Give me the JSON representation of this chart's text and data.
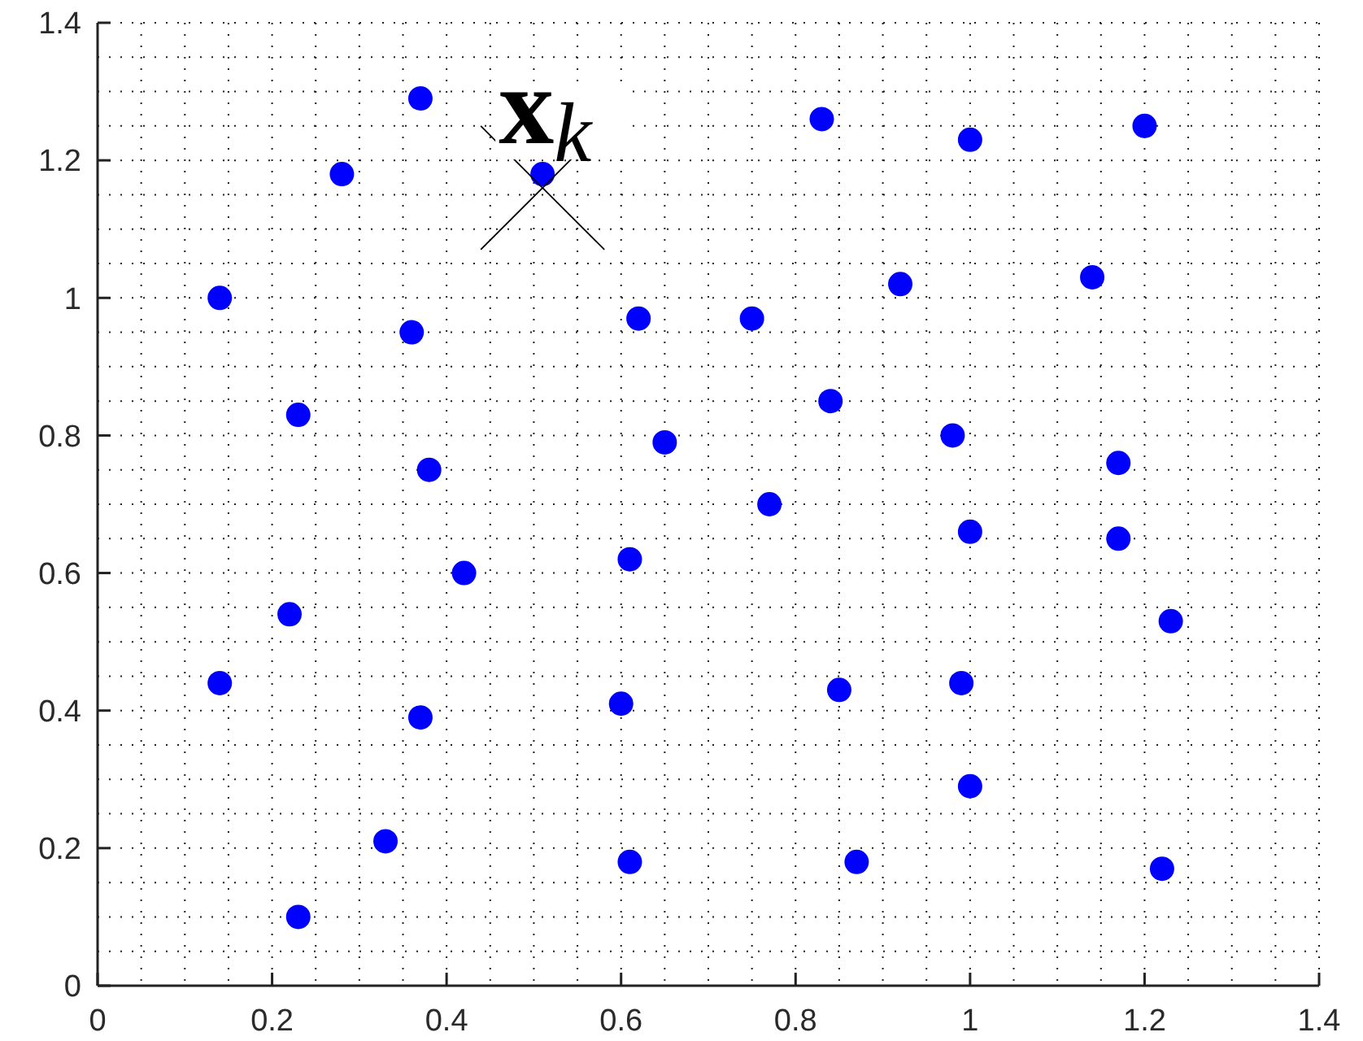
{
  "chart_data": {
    "type": "scatter",
    "xlim": [
      0,
      1.4
    ],
    "ylim": [
      0,
      1.4
    ],
    "xticks": [
      0,
      {
        "value": 0.05,
        "label": null
      },
      {
        "value": 0.1,
        "label": null
      },
      {
        "value": 0.15,
        "label": null
      },
      0.2,
      {
        "value": 0.25,
        "label": null
      },
      {
        "value": 0.3,
        "label": null
      },
      {
        "value": 0.35,
        "label": null
      },
      0.4,
      {
        "value": 0.45,
        "label": null
      },
      {
        "value": 0.5,
        "label": null
      },
      {
        "value": 0.55,
        "label": null
      },
      0.6,
      {
        "value": 0.65,
        "label": null
      },
      {
        "value": 0.7,
        "label": null
      },
      {
        "value": 0.75,
        "label": null
      },
      0.8,
      {
        "value": 0.85,
        "label": null
      },
      {
        "value": 0.9,
        "label": null
      },
      {
        "value": 0.95,
        "label": null
      },
      1,
      {
        "value": 1.05,
        "label": null
      },
      {
        "value": 1.1,
        "label": null
      },
      {
        "value": 1.15,
        "label": null
      },
      1.2,
      {
        "value": 1.25,
        "label": null
      },
      {
        "value": 1.3,
        "label": null
      },
      {
        "value": 1.35,
        "label": null
      },
      1.4
    ],
    "yticks": [
      0,
      {
        "value": 0.05,
        "label": null
      },
      {
        "value": 0.1,
        "label": null
      },
      {
        "value": 0.15,
        "label": null
      },
      0.2,
      {
        "value": 0.25,
        "label": null
      },
      {
        "value": 0.3,
        "label": null
      },
      {
        "value": 0.35,
        "label": null
      },
      0.4,
      {
        "value": 0.45,
        "label": null
      },
      {
        "value": 0.5,
        "label": null
      },
      {
        "value": 0.55,
        "label": null
      },
      0.6,
      {
        "value": 0.65,
        "label": null
      },
      {
        "value": 0.7,
        "label": null
      },
      {
        "value": 0.75,
        "label": null
      },
      0.8,
      {
        "value": 0.85,
        "label": null
      },
      {
        "value": 0.9,
        "label": null
      },
      {
        "value": 0.95,
        "label": null
      },
      1,
      {
        "value": 1.05,
        "label": null
      },
      {
        "value": 1.1,
        "label": null
      },
      {
        "value": 1.15,
        "label": null
      },
      1.2,
      {
        "value": 1.25,
        "label": null
      },
      {
        "value": 1.3,
        "label": null
      },
      {
        "value": 1.35,
        "label": null
      },
      1.4
    ],
    "grid": true,
    "marker": "circle",
    "series": [
      {
        "color": "#0000ff",
        "x": [
          0.37,
          0.28,
          0.51,
          0.14,
          0.36,
          0.62,
          0.23,
          0.38,
          0.65,
          0.83,
          1.0,
          1.2,
          0.92,
          0.75,
          1.14,
          0.84,
          0.98,
          1.17,
          0.77,
          0.61,
          0.42,
          0.22,
          0.14,
          0.37,
          0.6,
          0.33,
          0.61,
          0.23,
          1.0,
          1.17,
          1.23,
          0.85,
          0.99,
          1.0,
          0.87,
          1.22
        ],
        "values": [
          1.29,
          1.18,
          1.18,
          1.0,
          0.95,
          0.97,
          0.83,
          0.75,
          0.79,
          1.26,
          1.23,
          1.25,
          1.02,
          0.97,
          1.03,
          0.85,
          0.8,
          0.76,
          0.7,
          0.62,
          0.6,
          0.54,
          0.44,
          0.39,
          0.41,
          0.21,
          0.18,
          0.1,
          0.66,
          0.65,
          0.53,
          0.43,
          0.44,
          0.29,
          0.18,
          0.17
        ]
      },
      {
        "type": "scatter",
        "marker": "cross",
        "color": "#000000",
        "x": [
          0.51
        ],
        "values": [
          1.16
        ]
      }
    ],
    "annotations": [
      {
        "text": "x$_{k}$",
        "x": 0.51,
        "y": 1.18
      }
    ]
  }
}
